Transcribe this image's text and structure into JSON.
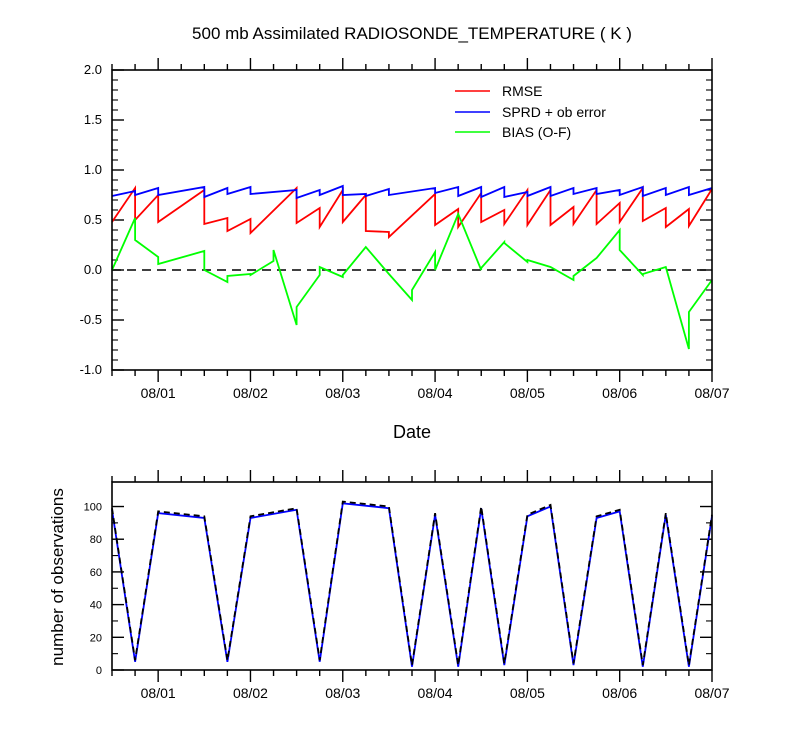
{
  "chart_data": [
    {
      "type": "line",
      "title": "500 mb Assimilated RADIOSONDE_TEMPERATURE ( K )",
      "xlabel": "Date",
      "ylabel": "",
      "ylim": [
        -1.0,
        2.0
      ],
      "yticks": [
        2.0,
        1.5,
        1.0,
        0.5,
        0.0,
        -0.5,
        -1.0
      ],
      "ytick_labels": [
        "2.0",
        "1.5",
        "1.0",
        "0.5",
        "0.0",
        "-0.5",
        "-1.0"
      ],
      "xlim": [
        -0.5,
        6.0
      ],
      "xticks": [
        0,
        1,
        2,
        3,
        4,
        5,
        6
      ],
      "xtick_labels": [
        "08/01",
        "08/02",
        "08/03",
        "08/04",
        "08/05",
        "08/06",
        "08/07"
      ],
      "legend": "top-right",
      "zero_line": "dashed",
      "series": [
        {
          "name": "RMSE",
          "color": "#ff0000",
          "x": [
            -0.5,
            -0.25,
            -0.25,
            0,
            0,
            0.5,
            0.5,
            0.75,
            0.75,
            1,
            1,
            1.5,
            1.5,
            1.75,
            1.75,
            2,
            2,
            2.25,
            2.25,
            2.5,
            2.5,
            3,
            3,
            3.25,
            3.25,
            3.5,
            3.5,
            3.75,
            3.75,
            4,
            4,
            4.25,
            4.25,
            4.5,
            4.5,
            4.75,
            4.75,
            5,
            5,
            5.25,
            5.25,
            5.5,
            5.5,
            5.75,
            5.75,
            6
          ],
          "y": [
            0.48,
            0.82,
            0.5,
            0.75,
            0.48,
            0.8,
            0.46,
            0.52,
            0.39,
            0.51,
            0.37,
            0.82,
            0.47,
            0.62,
            0.43,
            0.8,
            0.48,
            0.75,
            0.39,
            0.38,
            0.33,
            0.76,
            0.45,
            0.61,
            0.43,
            0.77,
            0.48,
            0.6,
            0.46,
            0.8,
            0.45,
            0.8,
            0.45,
            0.63,
            0.46,
            0.8,
            0.46,
            0.67,
            0.48,
            0.82,
            0.49,
            0.62,
            0.43,
            0.61,
            0.44,
            0.81
          ]
        },
        {
          "name": "SPRD + ob error",
          "color": "#0000ff",
          "x": [
            -0.5,
            -0.25,
            -0.25,
            0,
            0,
            0.5,
            0.5,
            0.75,
            0.75,
            1,
            1,
            1.5,
            1.5,
            1.75,
            1.75,
            2,
            2,
            2.25,
            2.25,
            2.5,
            2.5,
            3,
            3,
            3.25,
            3.25,
            3.5,
            3.5,
            3.75,
            3.75,
            4,
            4,
            4.25,
            4.25,
            4.5,
            4.5,
            4.75,
            4.75,
            5,
            5,
            5.25,
            5.25,
            5.5,
            5.5,
            5.75,
            5.75,
            6
          ],
          "y": [
            0.74,
            0.79,
            0.75,
            0.82,
            0.75,
            0.83,
            0.73,
            0.82,
            0.76,
            0.83,
            0.76,
            0.8,
            0.72,
            0.8,
            0.75,
            0.84,
            0.75,
            0.76,
            0.74,
            0.81,
            0.75,
            0.82,
            0.77,
            0.83,
            0.74,
            0.83,
            0.73,
            0.83,
            0.73,
            0.78,
            0.74,
            0.83,
            0.74,
            0.82,
            0.76,
            0.82,
            0.76,
            0.8,
            0.75,
            0.83,
            0.74,
            0.82,
            0.75,
            0.83,
            0.75,
            0.82
          ]
        },
        {
          "name": "BIAS (O-F)",
          "color": "#00ff00",
          "x": [
            -0.5,
            -0.25,
            -0.25,
            0,
            0,
            0.5,
            0.5,
            0.75,
            0.75,
            1,
            1,
            1.25,
            1.25,
            1.5,
            1.5,
            1.75,
            1.75,
            2,
            2,
            2.25,
            2.25,
            2.5,
            2.5,
            2.75,
            2.75,
            3,
            3,
            3.25,
            3.25,
            3.5,
            3.5,
            3.75,
            3.75,
            4,
            4,
            4.25,
            4.25,
            4.5,
            4.5,
            4.75,
            4.75,
            5,
            5,
            5.25,
            5.25,
            5.5,
            5.5,
            5.75,
            5.75,
            6
          ],
          "y": [
            0.0,
            0.52,
            0.3,
            0.13,
            0.06,
            0.19,
            0.0,
            -0.12,
            -0.06,
            -0.04,
            -0.05,
            0.09,
            0.2,
            -0.55,
            -0.37,
            -0.05,
            0.03,
            -0.07,
            -0.05,
            0.23,
            0.23,
            -0.04,
            -0.04,
            -0.3,
            -0.2,
            0.18,
            0.0,
            0.56,
            0.56,
            0.0,
            0.02,
            0.28,
            0.27,
            0.08,
            0.1,
            0.03,
            0.03,
            -0.1,
            -0.06,
            0.12,
            0.12,
            0.4,
            0.2,
            -0.05,
            -0.04,
            0.03,
            0.03,
            -0.79,
            -0.42,
            -0.1
          ]
        }
      ]
    },
    {
      "type": "line",
      "title": "",
      "xlabel": "",
      "ylabel": "number of observations",
      "ylim": [
        0,
        115
      ],
      "yticks": [
        0,
        20,
        40,
        60,
        80,
        100
      ],
      "ytick_labels": [
        "0",
        "20",
        "40",
        "60",
        "80",
        "100"
      ],
      "xlim": [
        -0.5,
        6.0
      ],
      "xticks": [
        0,
        1,
        2,
        3,
        4,
        5,
        6
      ],
      "xtick_labels": [
        "08/01",
        "08/02",
        "08/03",
        "08/04",
        "08/05",
        "08/06",
        "08/07"
      ],
      "series": [
        {
          "name": "number of observations (solid)",
          "color": "#0000ff",
          "style": "solid",
          "x": [
            -0.5,
            -0.25,
            0,
            0.5,
            0.75,
            1,
            1.5,
            1.75,
            2,
            2.5,
            2.75,
            3,
            3.25,
            3.5,
            3.75,
            4,
            4.25,
            4.5,
            4.75,
            5,
            5.25,
            5.5,
            5.75,
            6
          ],
          "y": [
            98,
            5,
            96,
            93,
            5,
            93,
            98,
            5,
            102,
            99,
            2,
            95,
            2,
            99,
            3,
            94,
            100,
            3,
            93,
            97,
            2,
            95,
            2,
            94
          ]
        },
        {
          "name": "number of observations (dashed)",
          "color": "#000000",
          "style": "dashed",
          "x": [
            -0.5,
            -0.25,
            0,
            0.5,
            0.75,
            1,
            1.5,
            1.75,
            2,
            2.5,
            2.75,
            3,
            3.25,
            3.5,
            3.75,
            4,
            4.25,
            4.5,
            4.75,
            5,
            5.25,
            5.5,
            5.75,
            6
          ],
          "y": [
            99,
            6,
            97,
            94,
            6,
            94,
            99,
            6,
            103,
            100,
            3,
            96,
            3,
            100,
            4,
            95,
            101,
            4,
            94,
            98,
            3,
            96,
            3,
            95
          ]
        }
      ]
    }
  ]
}
